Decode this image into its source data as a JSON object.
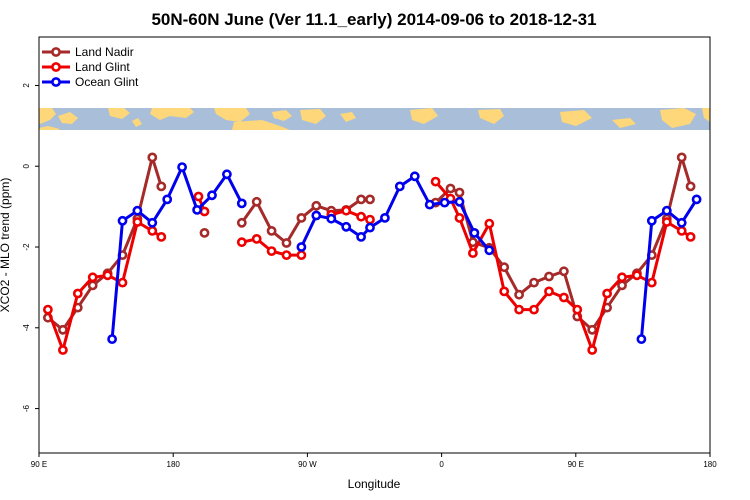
{
  "chart_data": {
    "type": "line",
    "title": "50N-60N June (Ver 11.1_early)   2014-09-06 to 2018-12-31",
    "xlabel": "Longitude",
    "ylabel": "XCO2 - MLO trend (ppm)",
    "xlim": [
      90,
      540
    ],
    "ylim": [
      -7.1,
      3.2
    ],
    "x_ticks": [
      {
        "value": 90,
        "label": "90 E"
      },
      {
        "value": 180,
        "label": "180"
      },
      {
        "value": 270,
        "label": "90 W"
      },
      {
        "value": 360,
        "label": "0"
      },
      {
        "value": 450,
        "label": "90 E"
      },
      {
        "value": 540,
        "label": "180"
      }
    ],
    "y_ticks": [
      {
        "value": 2,
        "label": "2"
      },
      {
        "value": 0,
        "label": "0"
      },
      {
        "value": -2,
        "label": "-2"
      },
      {
        "value": -4,
        "label": "-4"
      },
      {
        "value": -6,
        "label": "-6"
      }
    ],
    "map_strip": {
      "ocean_color": "#a9bfd9",
      "land_color": "#fdd779"
    },
    "legend": {
      "position": "top-left"
    },
    "series": [
      {
        "name": "Land Nadir",
        "color": "#a52a2a",
        "segments": [
          [
            [
              96,
              -3.75
            ],
            [
              106,
              -4.05
            ],
            [
              116,
              -3.5
            ],
            [
              126,
              -2.95
            ],
            [
              136,
              -2.65
            ],
            [
              146,
              -2.2
            ],
            [
              156,
              -1.3
            ],
            [
              166,
              0.22
            ],
            [
              172,
              -0.5
            ]
          ],
          [
            [
              201,
              -1.65
            ]
          ],
          [
            [
              226,
              -1.4
            ],
            [
              236,
              -0.88
            ],
            [
              246,
              -1.6
            ],
            [
              256,
              -1.9
            ],
            [
              266,
              -1.28
            ],
            [
              276,
              -0.98
            ],
            [
              286,
              -1.1
            ],
            [
              296,
              -1.08
            ],
            [
              306,
              -0.82
            ],
            [
              312,
              -0.82
            ]
          ],
          [
            [
              356,
              -0.9
            ],
            [
              366,
              -0.55
            ],
            [
              372,
              -0.65
            ],
            [
              381,
              -1.88
            ],
            [
              392,
              -2.02
            ],
            [
              402,
              -2.5
            ],
            [
              412,
              -3.18
            ],
            [
              422,
              -2.88
            ],
            [
              432,
              -2.73
            ],
            [
              442,
              -2.6
            ],
            [
              451,
              -3.72
            ],
            [
              461,
              -4.05
            ],
            [
              471,
              -3.5
            ],
            [
              481,
              -2.95
            ],
            [
              491,
              -2.65
            ],
            [
              501,
              -2.2
            ],
            [
              511,
              -1.3
            ],
            [
              521,
              0.22
            ],
            [
              527,
              -0.5
            ]
          ]
        ]
      },
      {
        "name": "Land Glint",
        "color": "#ee0000",
        "segments": [
          [
            [
              96,
              -3.55
            ],
            [
              106,
              -4.55
            ],
            [
              116,
              -3.15
            ],
            [
              126,
              -2.75
            ],
            [
              136,
              -2.7
            ],
            [
              146,
              -2.88
            ],
            [
              156,
              -1.38
            ],
            [
              166,
              -1.6
            ],
            [
              172,
              -1.75
            ]
          ],
          [
            [
              197,
              -0.75
            ],
            [
              201,
              -1.12
            ]
          ],
          [
            [
              226,
              -1.88
            ],
            [
              236,
              -1.8
            ],
            [
              246,
              -2.1
            ],
            [
              256,
              -2.2
            ],
            [
              266,
              -2.2
            ]
          ],
          [
            [
              286,
              -1.2
            ],
            [
              296,
              -1.1
            ],
            [
              306,
              -1.25
            ],
            [
              312,
              -1.32
            ]
          ],
          [
            [
              356,
              -0.38
            ],
            [
              366,
              -0.8
            ],
            [
              372,
              -1.28
            ],
            [
              381,
              -2.15
            ],
            [
              392,
              -1.42
            ],
            [
              402,
              -3.1
            ],
            [
              412,
              -3.55
            ],
            [
              422,
              -3.55
            ],
            [
              432,
              -3.1
            ],
            [
              442,
              -3.25
            ],
            [
              451,
              -3.55
            ],
            [
              461,
              -4.55
            ],
            [
              471,
              -3.15
            ],
            [
              481,
              -2.75
            ],
            [
              491,
              -2.7
            ],
            [
              501,
              -2.88
            ],
            [
              511,
              -1.38
            ],
            [
              521,
              -1.6
            ],
            [
              527,
              -1.75
            ]
          ]
        ]
      },
      {
        "name": "Ocean Glint",
        "color": "#0000ee",
        "segments": [
          [
            [
              139,
              -4.28
            ],
            [
              146,
              -1.35
            ],
            [
              156,
              -1.1
            ],
            [
              166,
              -1.4
            ],
            [
              176,
              -0.82
            ],
            [
              186,
              -0.02
            ],
            [
              196,
              -1.08
            ],
            [
              206,
              -0.72
            ],
            [
              216,
              -0.2
            ],
            [
              226,
              -0.92
            ]
          ],
          [
            [
              266,
              -2.0
            ],
            [
              276,
              -1.22
            ],
            [
              286,
              -1.3
            ],
            [
              296,
              -1.5
            ],
            [
              306,
              -1.75
            ],
            [
              312,
              -1.52
            ],
            [
              322,
              -1.28
            ],
            [
              332,
              -0.5
            ],
            [
              342,
              -0.25
            ],
            [
              352,
              -0.95
            ],
            [
              362,
              -0.9
            ],
            [
              372,
              -0.88
            ],
            [
              382,
              -1.65
            ],
            [
              392,
              -2.08
            ]
          ],
          [
            [
              494,
              -4.28
            ],
            [
              501,
              -1.35
            ],
            [
              511,
              -1.1
            ],
            [
              521,
              -1.4
            ],
            [
              531,
              -0.82
            ]
          ]
        ]
      }
    ]
  }
}
